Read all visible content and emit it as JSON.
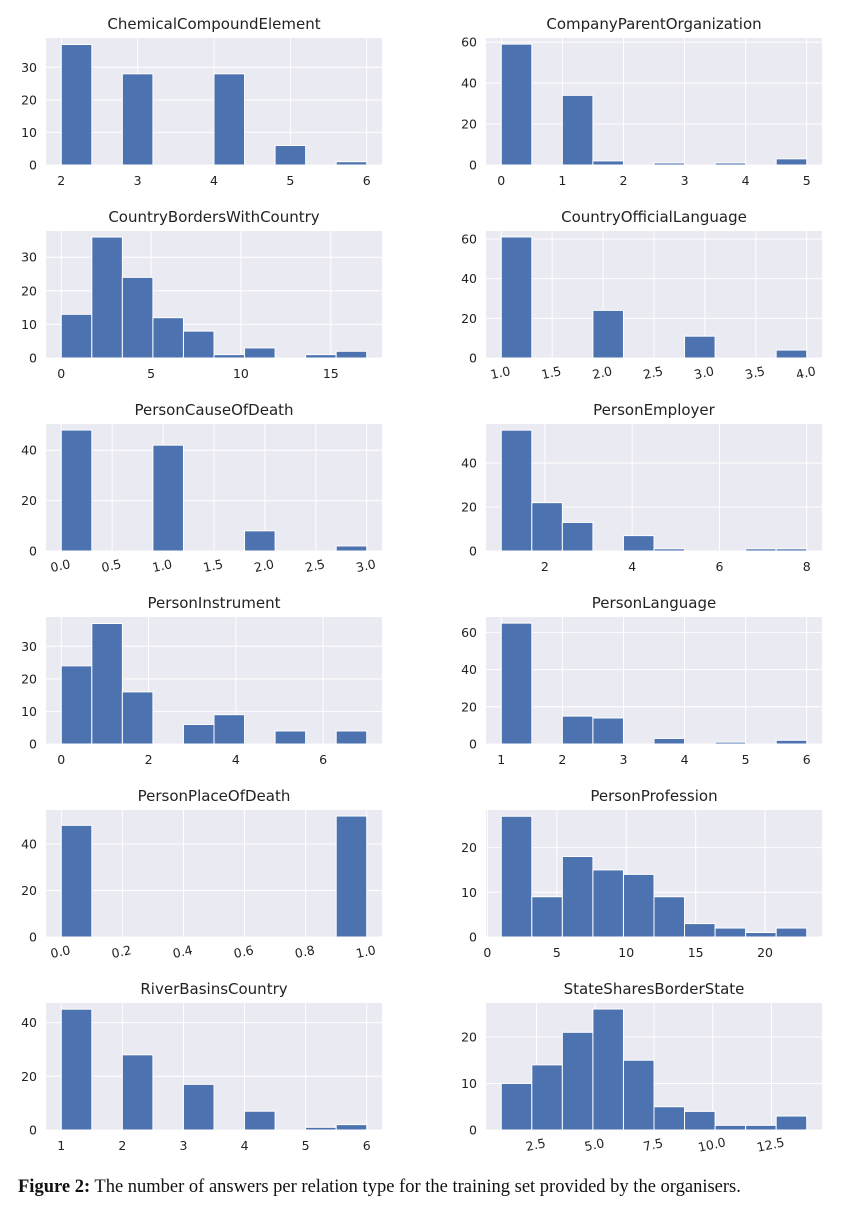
{
  "figure": {
    "caption_label": "Figure 2:",
    "caption_text": "The number of answers per relation type for the training set provided by the organisers."
  },
  "colors": {
    "bar": "#4c72b0",
    "panel_bg": "#eaeaf2",
    "grid": "#ffffff",
    "text": "#222222"
  },
  "chart_data": [
    {
      "type": "bar",
      "title": "ChemicalCompoundElement",
      "bins": [
        [
          2,
          2.4,
          37
        ],
        [
          2.4,
          2.8,
          0
        ],
        [
          2.8,
          3.2,
          28
        ],
        [
          3.2,
          3.6,
          0
        ],
        [
          3.6,
          4,
          0
        ],
        [
          4,
          4.4,
          28
        ],
        [
          4.4,
          4.8,
          0
        ],
        [
          4.8,
          5.2,
          6
        ],
        [
          5.2,
          5.6,
          0
        ],
        [
          5.6,
          6,
          1
        ]
      ],
      "xlim": [
        1.8,
        6.2
      ],
      "ylim": [
        0,
        39
      ],
      "xticks": [
        2,
        3,
        4,
        5,
        6
      ],
      "xtick_labels": [
        "2",
        "3",
        "4",
        "5",
        "6"
      ],
      "xtick_rotate": false,
      "yticks": [
        0,
        10,
        20,
        30
      ],
      "ytick_labels": [
        "0",
        "10",
        "20",
        "30"
      ]
    },
    {
      "type": "bar",
      "title": "CompanyParentOrganization",
      "bins": [
        [
          0,
          0.5,
          59
        ],
        [
          0.5,
          1,
          0
        ],
        [
          1,
          1.5,
          34
        ],
        [
          1.5,
          2,
          2
        ],
        [
          2,
          2.5,
          0
        ],
        [
          2.5,
          3,
          1
        ],
        [
          3,
          3.5,
          0
        ],
        [
          3.5,
          4,
          1
        ],
        [
          4,
          4.5,
          0
        ],
        [
          4.5,
          5,
          3
        ]
      ],
      "xlim": [
        -0.25,
        5.25
      ],
      "ylim": [
        0,
        62
      ],
      "xticks": [
        0,
        1,
        2,
        3,
        4,
        5
      ],
      "xtick_labels": [
        "0",
        "1",
        "2",
        "3",
        "4",
        "5"
      ],
      "xtick_rotate": false,
      "yticks": [
        0,
        20,
        40,
        60
      ],
      "ytick_labels": [
        "0",
        "20",
        "40",
        "60"
      ]
    },
    {
      "type": "bar",
      "title": "CountryBordersWithCountry",
      "bins": [
        [
          0,
          1.7,
          13
        ],
        [
          1.7,
          3.4,
          36
        ],
        [
          3.4,
          5.1,
          24
        ],
        [
          5.1,
          6.8,
          12
        ],
        [
          6.8,
          8.5,
          8
        ],
        [
          8.5,
          10.2,
          1
        ],
        [
          10.2,
          11.9,
          3
        ],
        [
          11.9,
          13.6,
          0
        ],
        [
          13.6,
          15.3,
          1
        ],
        [
          15.3,
          17,
          2
        ]
      ],
      "xlim": [
        -0.85,
        17.85
      ],
      "ylim": [
        0,
        37.8
      ],
      "xticks": [
        0,
        5,
        10,
        15
      ],
      "xtick_labels": [
        "0",
        "5",
        "10",
        "15"
      ],
      "xtick_rotate": false,
      "yticks": [
        0,
        10,
        20,
        30
      ],
      "ytick_labels": [
        "0",
        "10",
        "20",
        "30"
      ]
    },
    {
      "type": "bar",
      "title": "CountryOfficialLanguage",
      "bins": [
        [
          1,
          1.3,
          61
        ],
        [
          1.3,
          1.6,
          0
        ],
        [
          1.6,
          1.9,
          0
        ],
        [
          1.9,
          2.2,
          24
        ],
        [
          2.2,
          2.5,
          0
        ],
        [
          2.5,
          2.8,
          0
        ],
        [
          2.8,
          3.1,
          11
        ],
        [
          3.1,
          3.4,
          0
        ],
        [
          3.4,
          3.7,
          0
        ],
        [
          3.7,
          4,
          4
        ]
      ],
      "xlim": [
        0.85,
        4.15
      ],
      "ylim": [
        0,
        64
      ],
      "xticks": [
        1,
        1.5,
        2,
        2.5,
        3,
        3.5,
        4
      ],
      "xtick_labels": [
        "1.0",
        "1.5",
        "2.0",
        "2.5",
        "3.0",
        "3.5",
        "4.0"
      ],
      "xtick_rotate": true,
      "yticks": [
        0,
        20,
        40,
        60
      ],
      "ytick_labels": [
        "0",
        "20",
        "40",
        "60"
      ]
    },
    {
      "type": "bar",
      "title": "PersonCauseOfDeath",
      "bins": [
        [
          0,
          0.3,
          48
        ],
        [
          0.3,
          0.6,
          0
        ],
        [
          0.6,
          0.9,
          0
        ],
        [
          0.9,
          1.2,
          42
        ],
        [
          1.2,
          1.5,
          0
        ],
        [
          1.5,
          1.8,
          0
        ],
        [
          1.8,
          2.1,
          8
        ],
        [
          2.1,
          2.4,
          0
        ],
        [
          2.4,
          2.7,
          0
        ],
        [
          2.7,
          3,
          2
        ]
      ],
      "xlim": [
        -0.15,
        3.15
      ],
      "ylim": [
        0,
        50.4
      ],
      "xticks": [
        0,
        0.5,
        1,
        1.5,
        2,
        2.5,
        3
      ],
      "xtick_labels": [
        "0.0",
        "0.5",
        "1.0",
        "1.5",
        "2.0",
        "2.5",
        "3.0"
      ],
      "xtick_rotate": true,
      "yticks": [
        0,
        20,
        40
      ],
      "ytick_labels": [
        "0",
        "20",
        "40"
      ]
    },
    {
      "type": "bar",
      "title": "PersonEmployer",
      "bins": [
        [
          1,
          1.7,
          55
        ],
        [
          1.7,
          2.4,
          22
        ],
        [
          2.4,
          3.1,
          13
        ],
        [
          3.1,
          3.8,
          0
        ],
        [
          3.8,
          4.5,
          7
        ],
        [
          4.5,
          5.2,
          1
        ],
        [
          5.2,
          5.9,
          0
        ],
        [
          5.9,
          6.6,
          0
        ],
        [
          6.6,
          7.3,
          1
        ],
        [
          7.3,
          8,
          1
        ]
      ],
      "xlim": [
        0.65,
        8.35
      ],
      "ylim": [
        0,
        57.8
      ],
      "xticks": [
        2,
        4,
        6,
        8
      ],
      "xtick_labels": [
        "2",
        "4",
        "6",
        "8"
      ],
      "xtick_rotate": false,
      "yticks": [
        0,
        20,
        40
      ],
      "ytick_labels": [
        "0",
        "20",
        "40"
      ]
    },
    {
      "type": "bar",
      "title": "PersonInstrument",
      "bins": [
        [
          0,
          0.7,
          24
        ],
        [
          0.7,
          1.4,
          37
        ],
        [
          1.4,
          2.1,
          16
        ],
        [
          2.1,
          2.8,
          0
        ],
        [
          2.8,
          3.5,
          6
        ],
        [
          3.5,
          4.2,
          9
        ],
        [
          4.2,
          4.9,
          0
        ],
        [
          4.9,
          5.6,
          4
        ],
        [
          5.6,
          6.3,
          0
        ],
        [
          6.3,
          7,
          4
        ]
      ],
      "xlim": [
        -0.35,
        7.35
      ],
      "ylim": [
        0,
        39
      ],
      "xticks": [
        0,
        2,
        4,
        6
      ],
      "xtick_labels": [
        "0",
        "2",
        "4",
        "6"
      ],
      "xtick_rotate": false,
      "yticks": [
        0,
        10,
        20,
        30
      ],
      "ytick_labels": [
        "0",
        "10",
        "20",
        "30"
      ]
    },
    {
      "type": "bar",
      "title": "PersonLanguage",
      "bins": [
        [
          1,
          1.5,
          65
        ],
        [
          1.5,
          2,
          0
        ],
        [
          2,
          2.5,
          15
        ],
        [
          2.5,
          3,
          14
        ],
        [
          3,
          3.5,
          0
        ],
        [
          3.5,
          4,
          3
        ],
        [
          4,
          4.5,
          0
        ],
        [
          4.5,
          5,
          1
        ],
        [
          5,
          5.5,
          0
        ],
        [
          5.5,
          6,
          2
        ]
      ],
      "xlim": [
        0.75,
        6.25
      ],
      "ylim": [
        0,
        68.3
      ],
      "xticks": [
        1,
        2,
        3,
        4,
        5,
        6
      ],
      "xtick_labels": [
        "1",
        "2",
        "3",
        "4",
        "5",
        "6"
      ],
      "xtick_rotate": false,
      "yticks": [
        0,
        20,
        40,
        60
      ],
      "ytick_labels": [
        "0",
        "20",
        "40",
        "60"
      ]
    },
    {
      "type": "bar",
      "title": "PersonPlaceOfDeath",
      "bins": [
        [
          0,
          0.1,
          48
        ],
        [
          0.1,
          0.2,
          0
        ],
        [
          0.2,
          0.3,
          0
        ],
        [
          0.3,
          0.4,
          0
        ],
        [
          0.4,
          0.5,
          0
        ],
        [
          0.5,
          0.6,
          0
        ],
        [
          0.6,
          0.7,
          0
        ],
        [
          0.7,
          0.8,
          0
        ],
        [
          0.8,
          0.9,
          0
        ],
        [
          0.9,
          1,
          52
        ]
      ],
      "xlim": [
        -0.05,
        1.05
      ],
      "ylim": [
        0,
        54.6
      ],
      "xticks": [
        0,
        0.2,
        0.4,
        0.6,
        0.8,
        1
      ],
      "xtick_labels": [
        "0.0",
        "0.2",
        "0.4",
        "0.6",
        "0.8",
        "1.0"
      ],
      "xtick_rotate": true,
      "yticks": [
        0,
        20,
        40
      ],
      "ytick_labels": [
        "0",
        "20",
        "40"
      ]
    },
    {
      "type": "bar",
      "title": "PersonProfession",
      "bins": [
        [
          1,
          3.2,
          27
        ],
        [
          3.2,
          5.4,
          9
        ],
        [
          5.4,
          7.6,
          18
        ],
        [
          7.6,
          9.8,
          15
        ],
        [
          9.8,
          12,
          14
        ],
        [
          12,
          14.2,
          9
        ],
        [
          14.2,
          16.4,
          3
        ],
        [
          16.4,
          18.6,
          2
        ],
        [
          18.6,
          20.8,
          1
        ],
        [
          20.8,
          23,
          2
        ]
      ],
      "xlim": [
        -0.1,
        24.1
      ],
      "ylim": [
        0,
        28.4
      ],
      "xticks": [
        0,
        5,
        10,
        15,
        20
      ],
      "xtick_labels": [
        "0",
        "5",
        "10",
        "15",
        "20"
      ],
      "xtick_rotate": false,
      "yticks": [
        0,
        10,
        20
      ],
      "ytick_labels": [
        "0",
        "10",
        "20"
      ]
    },
    {
      "type": "bar",
      "title": "RiverBasinsCountry",
      "bins": [
        [
          1,
          1.5,
          45
        ],
        [
          1.5,
          2,
          0
        ],
        [
          2,
          2.5,
          28
        ],
        [
          2.5,
          3,
          0
        ],
        [
          3,
          3.5,
          17
        ],
        [
          3.5,
          4,
          0
        ],
        [
          4,
          4.5,
          7
        ],
        [
          4.5,
          5,
          0
        ],
        [
          5,
          5.5,
          1
        ],
        [
          5.5,
          6,
          2
        ]
      ],
      "xlim": [
        0.75,
        6.25
      ],
      "ylim": [
        0,
        47.3
      ],
      "xticks": [
        1,
        2,
        3,
        4,
        5,
        6
      ],
      "xtick_labels": [
        "1",
        "2",
        "3",
        "4",
        "5",
        "6"
      ],
      "xtick_rotate": false,
      "yticks": [
        0,
        20,
        40
      ],
      "ytick_labels": [
        "0",
        "20",
        "40"
      ]
    },
    {
      "type": "bar",
      "title": "StateSharesBorderState",
      "bins": [
        [
          1,
          2.3,
          10
        ],
        [
          2.3,
          3.6,
          14
        ],
        [
          3.6,
          4.9,
          21
        ],
        [
          4.9,
          6.2,
          26
        ],
        [
          6.2,
          7.5,
          15
        ],
        [
          7.5,
          8.8,
          5
        ],
        [
          8.8,
          10.1,
          4
        ],
        [
          10.1,
          11.4,
          1
        ],
        [
          11.4,
          12.7,
          1
        ],
        [
          12.7,
          14,
          3
        ]
      ],
      "xlim": [
        0.35,
        14.65
      ],
      "ylim": [
        0,
        27.3
      ],
      "xticks": [
        2.5,
        5,
        7.5,
        10,
        12.5
      ],
      "xtick_labels": [
        "2.5",
        "5.0",
        "7.5",
        "10.0",
        "12.5"
      ],
      "xtick_rotate": true,
      "yticks": [
        0,
        10,
        20
      ],
      "ytick_labels": [
        "0",
        "10",
        "20"
      ]
    }
  ]
}
